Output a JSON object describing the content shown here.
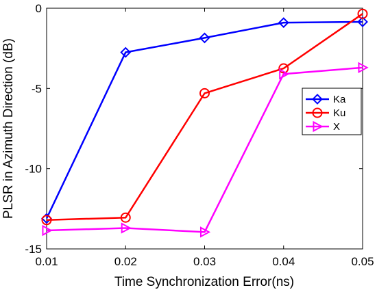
{
  "chart_data": {
    "type": "line",
    "title": "",
    "xlabel": "Time Synchronization Error(ns)",
    "ylabel": "PLSR in Azimuth Direction (dB)",
    "x": [
      0.01,
      0.02,
      0.03,
      0.04,
      0.05
    ],
    "x_tick_labels": [
      "0.01",
      "0.02",
      "0.03",
      "0.04",
      "0.05"
    ],
    "y_ticks": [
      0,
      -5,
      -10,
      -15
    ],
    "y_tick_labels": [
      "0",
      "-5",
      "-10",
      "-15"
    ],
    "xlim": [
      0.01,
      0.05
    ],
    "ylim": [
      -15,
      0
    ],
    "grid": false,
    "legend_position": "right",
    "series": [
      {
        "name": "Ka",
        "marker": "diamond",
        "color": "#0000ff",
        "values": [
          -13.1,
          -2.75,
          -1.85,
          -0.9,
          -0.85
        ]
      },
      {
        "name": "Ku",
        "marker": "circle",
        "color": "#ff0000",
        "values": [
          -13.2,
          -13.05,
          -5.3,
          -3.75,
          -0.35
        ]
      },
      {
        "name": "X",
        "marker": "triangle-right",
        "color": "#ff00ff",
        "values": [
          -13.85,
          -13.7,
          -13.95,
          -4.1,
          -3.7
        ]
      }
    ]
  }
}
